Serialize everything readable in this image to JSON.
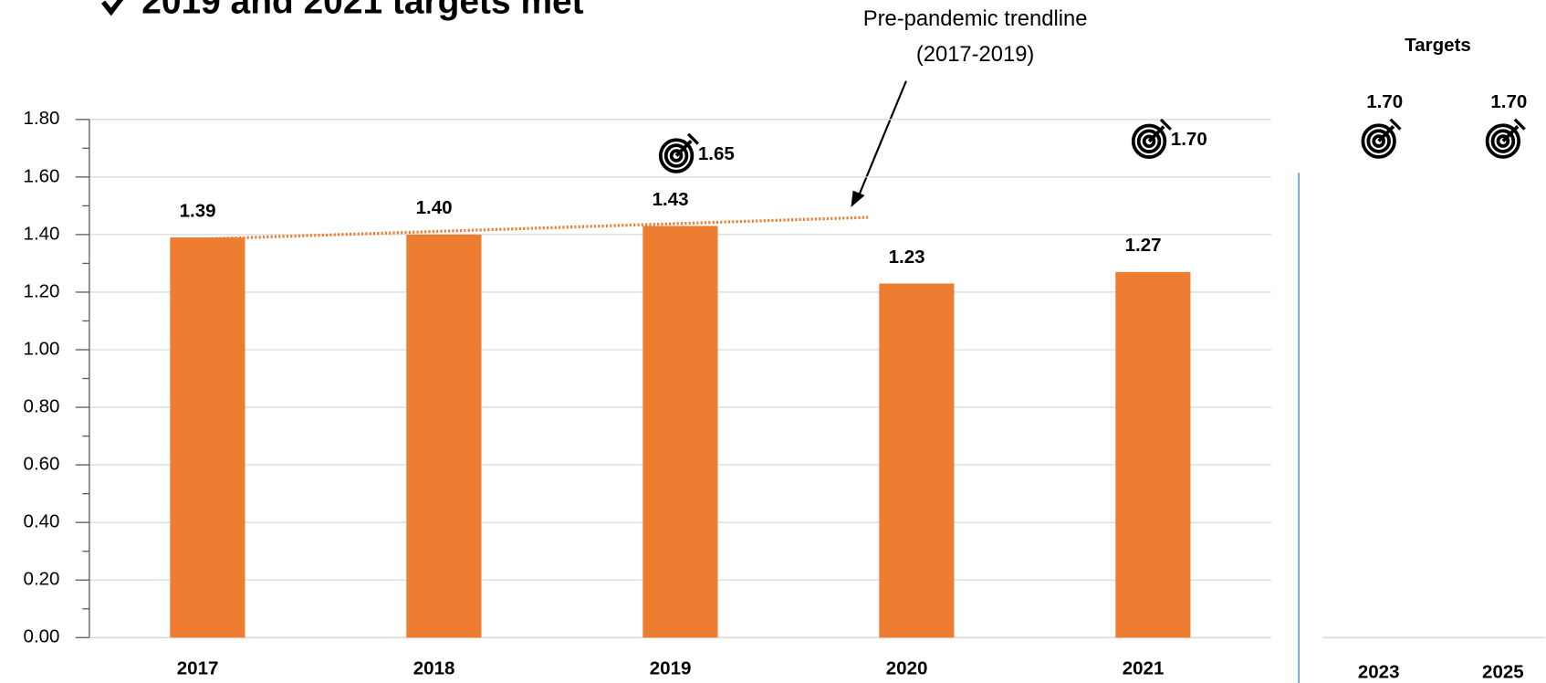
{
  "chart_data": {
    "type": "bar",
    "title": "2019 and 2021 targets met",
    "categories": [
      "2017",
      "2018",
      "2019",
      "2020",
      "2021"
    ],
    "values": [
      1.39,
      1.4,
      1.43,
      1.23,
      1.27
    ],
    "value_labels": [
      "1.39",
      "1.40",
      "1.43",
      "1.23",
      "1.27"
    ],
    "color": "#ed7d31",
    "ylim": [
      0,
      1.8
    ],
    "yticks": [
      {
        "value": 0,
        "label": "0.00"
      },
      {
        "value": 0.2,
        "label": "0.20"
      },
      {
        "value": 0.4,
        "label": "0.40"
      },
      {
        "value": 0.6,
        "label": "0.60"
      },
      {
        "value": 0.8,
        "label": "0.80"
      },
      {
        "value": 1.0,
        "label": "1.00"
      },
      {
        "value": 1.2,
        "label": "1.20"
      },
      {
        "value": 1.4,
        "label": "1.40"
      },
      {
        "value": 1.6,
        "label": "1.60"
      },
      {
        "value": 1.8,
        "label": "1.80"
      }
    ],
    "grid": true,
    "targets": {
      "categories": [
        "2019",
        "2021"
      ],
      "values": [
        1.65,
        1.7
      ],
      "value_labels": [
        "1.65",
        "1.70"
      ]
    },
    "trendline": {
      "name": "Pre-pandemic trendline",
      "period": "(2017-2019)",
      "values": [
        1.385,
        1.46
      ]
    },
    "future_targets": {
      "title": "Targets",
      "categories": [
        "2023",
        "2025"
      ],
      "values": [
        1.7,
        1.7
      ],
      "value_labels": [
        "1.70",
        "1.70"
      ]
    }
  }
}
